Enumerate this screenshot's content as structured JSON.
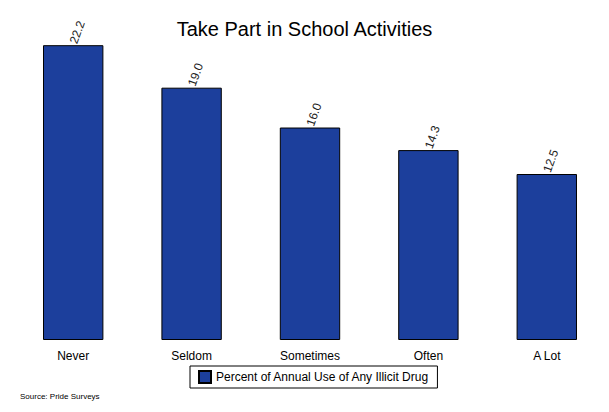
{
  "chart_data": {
    "type": "bar",
    "title": "Take Part in School Activities",
    "categories": [
      "Never",
      "Seldom",
      "Sometimes",
      "Often",
      "A Lot"
    ],
    "series": [
      {
        "name": "Percent of Annual Use of Any Illicit Drug",
        "color": "#1c3f9c",
        "values": [
          22.2,
          19.0,
          16.0,
          14.3,
          12.5
        ],
        "value_labels": [
          "22.2",
          "19.0",
          "16.0",
          "14.3",
          "12.5"
        ]
      }
    ],
    "ylim": [
      0,
      25
    ],
    "yticks": [
      0,
      25
    ],
    "grid": false,
    "data_labels": true,
    "tick_labels": "x",
    "legend": "bottom",
    "annotations": [
      "Source: Pride Surveys"
    ]
  }
}
